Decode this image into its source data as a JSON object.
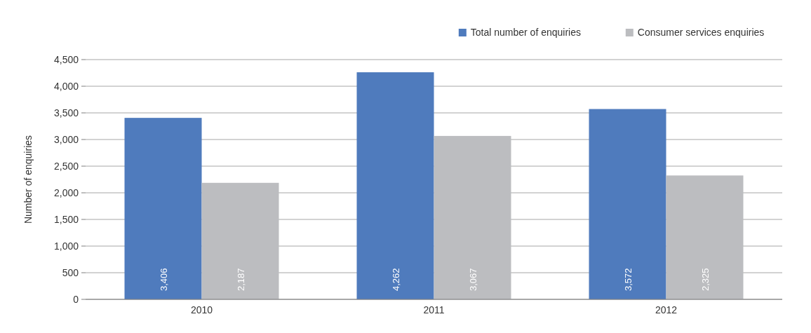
{
  "chart_data": {
    "type": "bar",
    "ylabel": "Number of enquiries",
    "categories": [
      "2010",
      "2011",
      "2012"
    ],
    "series": [
      {
        "name": "Total number of enquiries",
        "color": "#4f7bbd",
        "values": [
          3406,
          4262,
          3572
        ],
        "value_labels": [
          "3,406",
          "4,262",
          "3,572"
        ]
      },
      {
        "name": "Consumer services enquiries",
        "color": "#bcbdc0",
        "values": [
          2187,
          3067,
          2325
        ],
        "value_labels": [
          "2,187",
          "3,067",
          "2,325"
        ]
      }
    ],
    "ylim": [
      0,
      4500
    ],
    "yticks": [
      {
        "value": 0,
        "label": "0"
      },
      {
        "value": 500,
        "label": "500"
      },
      {
        "value": 1000,
        "label": "1,000"
      },
      {
        "value": 1500,
        "label": "1,500"
      },
      {
        "value": 2000,
        "label": "2,000"
      },
      {
        "value": 2500,
        "label": "2,500"
      },
      {
        "value": 3000,
        "label": "3,000"
      },
      {
        "value": 3500,
        "label": "3,500"
      },
      {
        "value": 4000,
        "label": "4,000"
      },
      {
        "value": 4500,
        "label": "4,500"
      }
    ],
    "grid": "y",
    "legend": "top right"
  }
}
